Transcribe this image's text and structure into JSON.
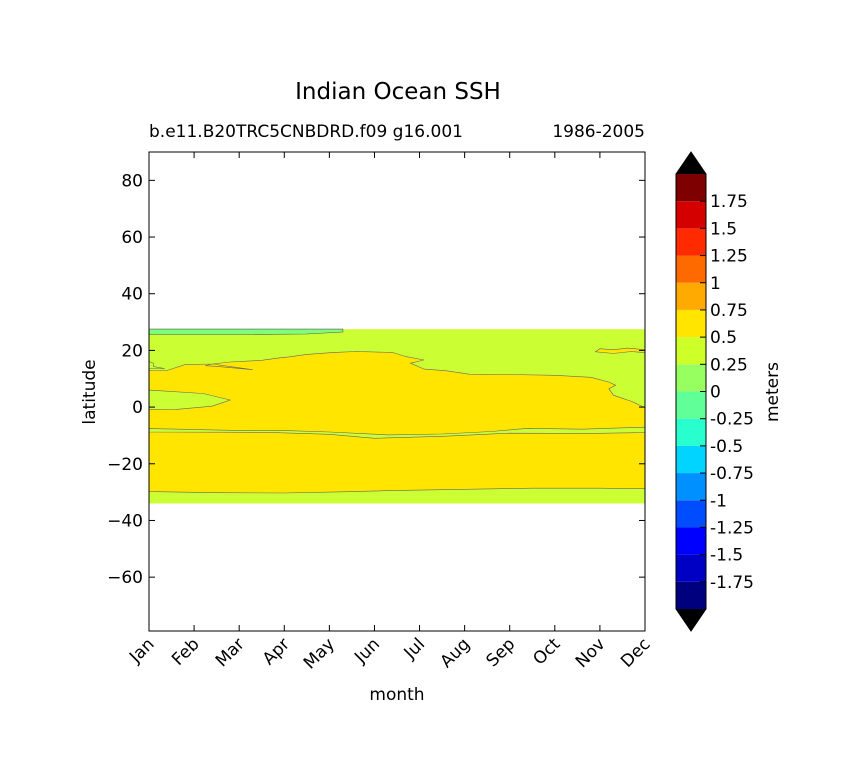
{
  "chart_data": {
    "type": "heatmap",
    "subtype": "filled-contour",
    "title": "Indian Ocean SSH",
    "subtitle_left": "b.e11.B20TRC5CNBDRD.f09 g16.001",
    "subtitle_right": "1986-2005",
    "xlabel": "month",
    "ylabel": "latitude",
    "x_ticks": [
      "Jan",
      "Feb",
      "Mar",
      "Apr",
      "May",
      "Jun",
      "Jul",
      "Aug",
      "Sep",
      "Oct",
      "Nov",
      "Dec"
    ],
    "y_ticks": [
      80,
      60,
      40,
      20,
      0,
      -20,
      -40,
      -60
    ],
    "y_tick_labels": [
      "80",
      "60",
      "40",
      "20",
      "0",
      "−20",
      "−40",
      "−60"
    ],
    "ylim": [
      -79,
      90
    ],
    "data_extent": {
      "lat_min": -34,
      "lat_max": 27.5
    },
    "grid": false,
    "regions": [
      {
        "level": "0 to 0.25",
        "color": "#7dff7a",
        "lat_min": 25.5,
        "lat_max": 27.5,
        "month_min": 1,
        "month_max": 5.3
      },
      {
        "level": "0.25 to 0.5",
        "color": "#ccff33",
        "lat_min": -34,
        "lat_max": 27.5
      },
      {
        "level": "0.5 to 0.75",
        "color": "#ffe500",
        "lat_min": -30,
        "lat_max": 20,
        "month_min": 1,
        "month_max": 12
      }
    ],
    "colorbar": {
      "label": "meters",
      "extend": "both",
      "levels": [
        -2,
        -1.75,
        -1.5,
        -1.25,
        -1,
        -0.75,
        -0.5,
        -0.25,
        0,
        0.25,
        0.5,
        0.75,
        1,
        1.25,
        1.5,
        1.75,
        2
      ],
      "colors": [
        "#00007f",
        "#0000c4",
        "#0000ff",
        "#004cff",
        "#0090ff",
        "#00d4ff",
        "#29ffce",
        "#60ff97",
        "#97ff60",
        "#ceff29",
        "#ffe500",
        "#ffaa00",
        "#ff6a00",
        "#ff2a00",
        "#d40000",
        "#7f0000"
      ],
      "under_color": "#000000",
      "over_color": "#000000",
      "tick_values": [
        -1.75,
        -1.5,
        -1.25,
        -1,
        -0.75,
        -0.5,
        -0.25,
        0,
        0.25,
        0.5,
        0.75,
        1,
        1.25,
        1.5,
        1.75
      ],
      "tick_labels": [
        "-1.75",
        "-1.5",
        "-1.25",
        "-1",
        "-0.75",
        "-0.5",
        "-0.25",
        "0",
        "0.25",
        "0.5",
        "0.75",
        "1",
        "1.25",
        "1.5",
        "1.75"
      ]
    }
  }
}
